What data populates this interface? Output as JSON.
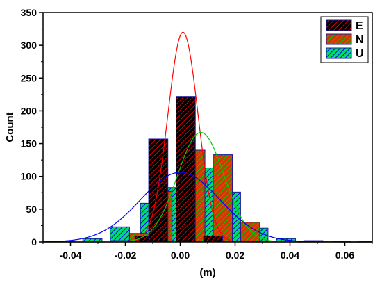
{
  "chart_data": {
    "type": "bar",
    "title": "",
    "xlabel": "(m)",
    "ylabel": "Count",
    "xlim": [
      -0.05,
      0.07
    ],
    "ylim": [
      0,
      350
    ],
    "xticks": [
      -0.04,
      -0.02,
      0.0,
      0.02,
      0.04,
      0.06
    ],
    "xtick_labels": [
      "-0.04",
      "-0.02",
      "0.00",
      "0.02",
      "0.04",
      "0.06"
    ],
    "yticks": [
      0,
      50,
      100,
      150,
      200,
      250,
      300,
      350
    ],
    "ytick_labels": [
      "0",
      "50",
      "100",
      "150",
      "200",
      "250",
      "300",
      "350"
    ],
    "grid": false,
    "legend_position": "top-right",
    "series": [
      {
        "name": "E",
        "fill_color": "#000000",
        "hatch_color": "#dd0000",
        "curve_color": "#ff0000",
        "bins": [
          {
            "x": -0.013,
            "value": 9
          },
          {
            "x": -0.008,
            "value": 157
          },
          {
            "x": 0.002,
            "value": 222
          },
          {
            "x": 0.012,
            "value": 9
          }
        ],
        "fit": {
          "mean": 0.001,
          "sigma": 0.0055,
          "peak": 320
        }
      },
      {
        "name": "N",
        "fill_color": "#dd3300",
        "hatch_color": "#00cc00",
        "curve_color": "#00cc00",
        "bins": [
          {
            "x": -0.022,
            "value": 2
          },
          {
            "x": -0.015,
            "value": 13
          },
          {
            "x": -0.0065,
            "value": 77
          },
          {
            "x": 0.0055,
            "value": 140
          },
          {
            "x": 0.0155,
            "value": 133
          },
          {
            "x": 0.0255,
            "value": 30
          }
        ],
        "fit": {
          "mean": 0.0075,
          "sigma": 0.0085,
          "peak": 167
        }
      },
      {
        "name": "U",
        "fill_color": "#00dd66",
        "hatch_color": "#0000ee",
        "curve_color": "#0000ff",
        "bins": [
          {
            "x": -0.042,
            "value": 1
          },
          {
            "x": -0.032,
            "value": 5
          },
          {
            "x": -0.022,
            "value": 23
          },
          {
            "x": -0.011,
            "value": 59
          },
          {
            "x": -0.0015,
            "value": 83
          },
          {
            "x": 0.0085,
            "value": 113
          },
          {
            "x": 0.0185,
            "value": 76
          },
          {
            "x": 0.0285,
            "value": 21
          },
          {
            "x": 0.0385,
            "value": 5
          },
          {
            "x": 0.0485,
            "value": 2
          },
          {
            "x": 0.0585,
            "value": 1
          },
          {
            "x": 0.0685,
            "value": 1
          }
        ],
        "fit": {
          "mean": 0.0,
          "sigma": 0.0145,
          "peak": 106
        }
      }
    ]
  }
}
